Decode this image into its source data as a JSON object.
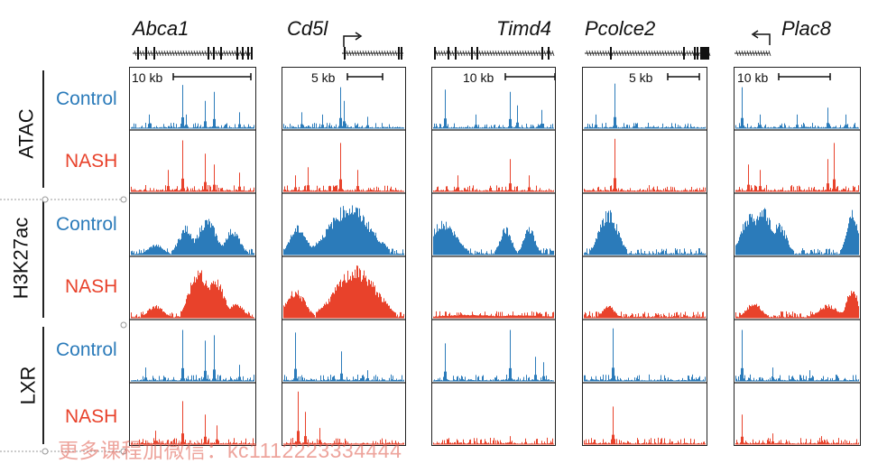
{
  "genes": [
    {
      "id": "abca1",
      "name": "Abca1",
      "scale_label": "10 kb"
    },
    {
      "id": "cd5l",
      "name": "Cd5l",
      "scale_label": "5 kb"
    },
    {
      "id": "timd4",
      "name": "Timd4",
      "scale_label": "10 kb"
    },
    {
      "id": "pcolce2",
      "name": "Pcolce2",
      "scale_label": "5 kb"
    },
    {
      "id": "plac8",
      "name": "Plac8",
      "scale_label": "10 kb"
    }
  ],
  "assays": [
    {
      "name": "ATAC",
      "conditions": [
        "Control",
        "NASH"
      ]
    },
    {
      "name": "H3K27ac",
      "conditions": [
        "Control",
        "NASH"
      ]
    },
    {
      "name": "LXR",
      "conditions": [
        "Control",
        "NASH"
      ]
    }
  ],
  "colors": {
    "Control": "#2b7bba",
    "NASH": "#e8422b"
  },
  "watermark": "更多课程加微信：kc1112223334444"
}
